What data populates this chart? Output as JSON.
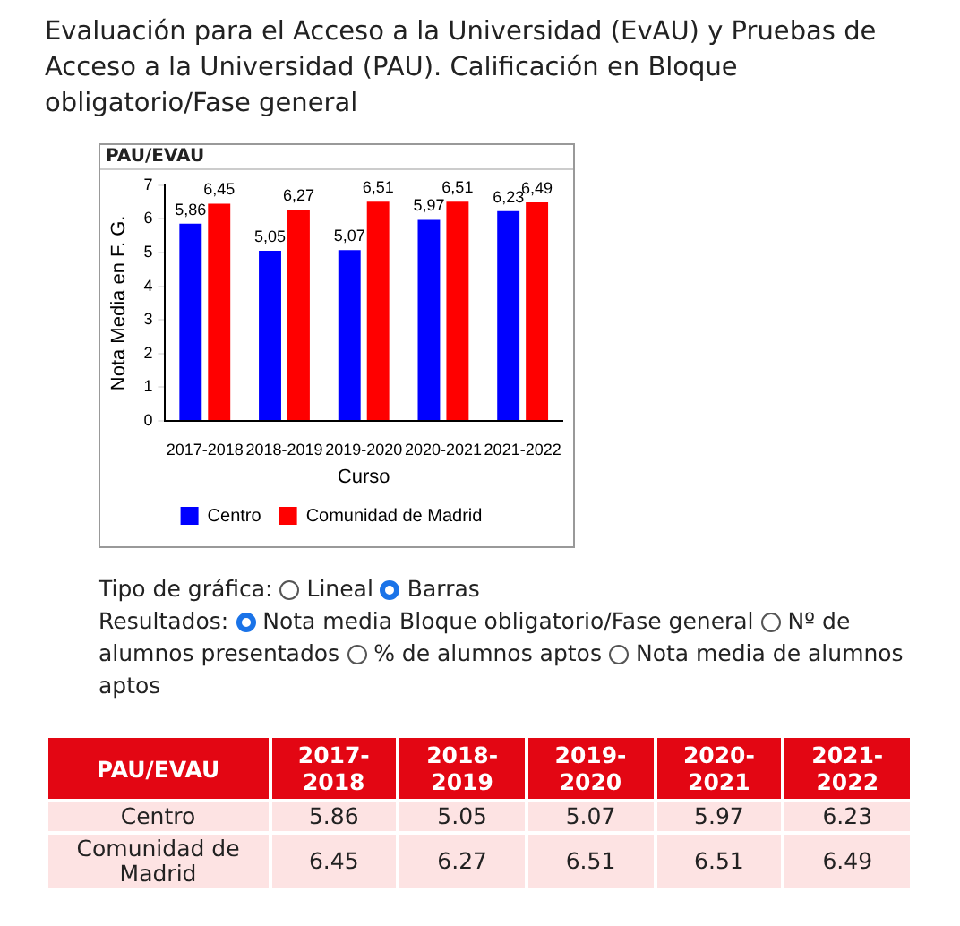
{
  "chart_data": {
    "type": "bar",
    "title": "Evaluación para el Acceso a la Universidad (EvAU) y Pruebas de Acceso a la Universidad (PAU). Calificación en Bloque obligatorio/Fase general",
    "subtitle": "PAU/EVAU",
    "xlabel": "Curso",
    "ylabel": "Nota Media en F. G.",
    "categories": [
      "2017-2018",
      "2018-2019",
      "2019-2020",
      "2020-2021",
      "2021-2022"
    ],
    "series": [
      {
        "name": "Centro",
        "color": "#0000ff",
        "values": [
          5.86,
          5.05,
          5.07,
          5.97,
          6.23
        ],
        "value_labels": [
          "5,86",
          "5,05",
          "5,07",
          "5,97",
          "6,23"
        ]
      },
      {
        "name": "Comunidad de Madrid",
        "color": "#ff0000",
        "values": [
          6.45,
          6.27,
          6.51,
          6.51,
          6.49
        ],
        "value_labels": [
          "6,45",
          "6,27",
          "6,51",
          "6,51",
          "6,49"
        ]
      }
    ],
    "ylim": [
      0,
      7
    ],
    "yticks": [
      0,
      1,
      2,
      3,
      4,
      5,
      6,
      7
    ],
    "grid": false,
    "legend": "bottom",
    "annotations": [
      "Tipo de gráfica:",
      "Lineal",
      "Barras",
      "Resultados:",
      "Nota media Bloque obligatorio/Fase general",
      "Nº de alumnos presentados",
      "% de alumnos aptos",
      "Nota media de alumnos aptos",
      "5.86",
      "5.05",
      "5.07",
      "5.97",
      "6.23",
      "6.45",
      "6.27",
      "6.51",
      "6.51",
      "6.49"
    ]
  }
}
